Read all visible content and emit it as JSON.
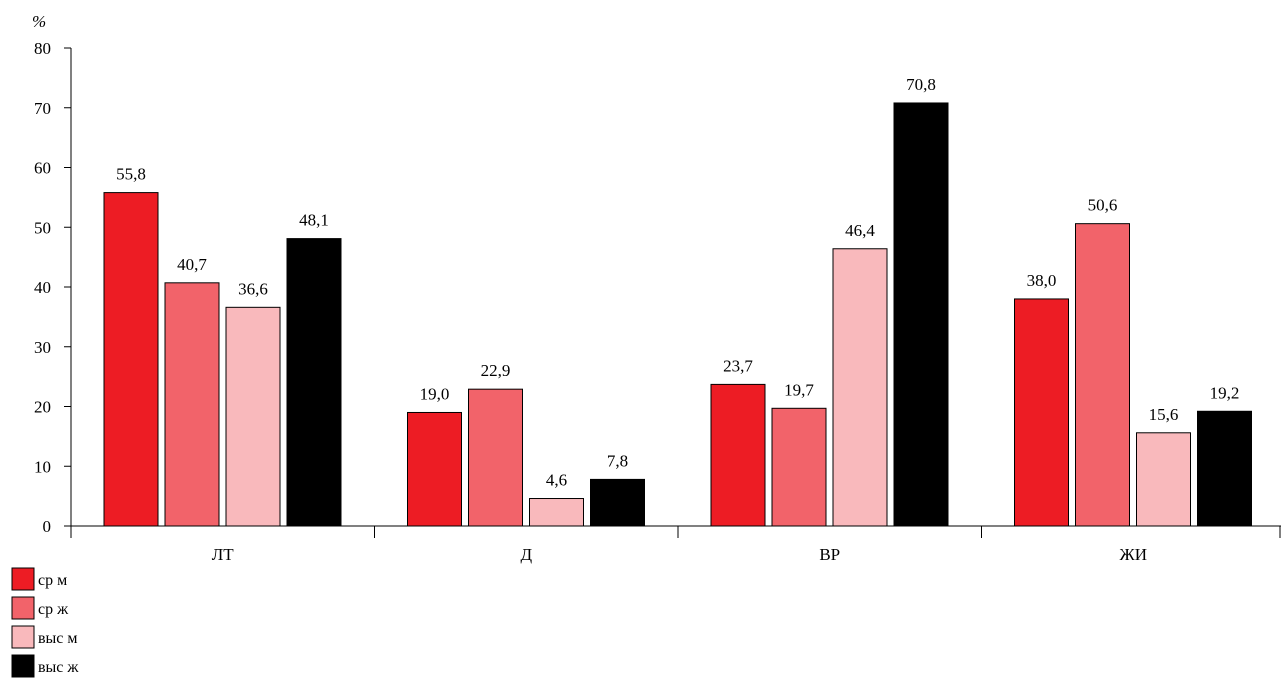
{
  "chart_data": {
    "type": "bar",
    "ylabel": "%",
    "ylim": [
      0,
      80
    ],
    "yticks": [
      0,
      10,
      20,
      30,
      40,
      50,
      60,
      70,
      80
    ],
    "categories": [
      "ЛТ",
      "Д",
      "ВР",
      "ЖИ"
    ],
    "series": [
      {
        "name": "ср м",
        "color": "#ed1c24",
        "values": [
          55.8,
          19.0,
          23.7,
          38.0
        ],
        "labels": [
          "55,8",
          "19,0",
          "23,7",
          "38,0"
        ]
      },
      {
        "name": "ср ж",
        "color": "#f2636a",
        "values": [
          40.7,
          22.9,
          19.7,
          50.6
        ],
        "labels": [
          "40,7",
          "22,9",
          "19,7",
          "50,6"
        ]
      },
      {
        "name": "выс м",
        "color": "#f9b9bc",
        "values": [
          36.6,
          4.6,
          46.4,
          15.6
        ],
        "labels": [
          "36,6",
          "4,6",
          "46,4",
          "15,6"
        ]
      },
      {
        "name": "выс ж",
        "color": "#000000",
        "values": [
          48.1,
          7.8,
          70.8,
          19.2
        ],
        "labels": [
          "48,1",
          "7,8",
          "70,8",
          "19,2"
        ]
      }
    ],
    "legend": "bottom-left",
    "grid": false
  }
}
